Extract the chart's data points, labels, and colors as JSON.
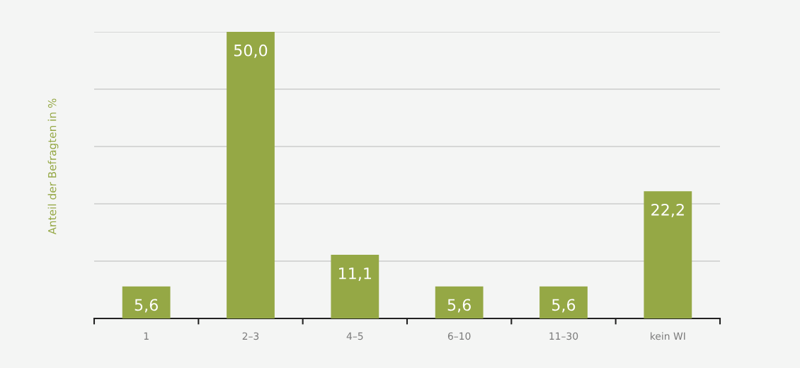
{
  "chart_data": {
    "type": "bar",
    "ylabel": "Anteil der Befragten in %",
    "categories": [
      "1",
      "2–3",
      "4–5",
      "6–10",
      "11–30",
      "kein WI"
    ],
    "values": [
      5.6,
      50.0,
      11.1,
      5.6,
      5.6,
      22.2
    ],
    "value_labels": [
      "5,6",
      "50,0",
      "11,1",
      "5,6",
      "5,6",
      "22,2"
    ],
    "color": "#95a845",
    "ylim": [
      0,
      50
    ],
    "yticks": [
      {
        "value": 10,
        "label": null
      },
      {
        "value": 20,
        "label": null
      },
      {
        "value": 30,
        "label": null
      },
      {
        "value": 40,
        "label": null
      },
      {
        "value": 50,
        "label": null
      }
    ],
    "grid": "y",
    "legend": false,
    "tick_labels": "x"
  }
}
